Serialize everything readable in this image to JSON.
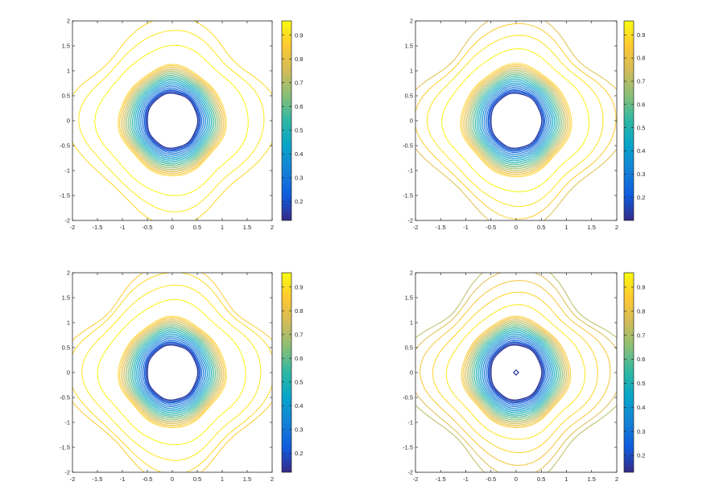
{
  "figure": {
    "background": "#ffffff",
    "axis_color": "#262626"
  },
  "colormap": {
    "name": "parula",
    "stops": [
      "#352a87",
      "#0f5cdd",
      "#1481d6",
      "#06a4ca",
      "#2eb7a4",
      "#87bf77",
      "#d1bb59",
      "#fec832",
      "#f9fb0e"
    ]
  },
  "chart_data": [
    {
      "type": "contour",
      "panel": "top-left",
      "title": "",
      "xlabel": "",
      "ylabel": "",
      "xlim": [
        -2,
        2
      ],
      "ylim": [
        -2,
        2
      ],
      "x_ticks": [
        "-2",
        "-1.5",
        "-1",
        "-0.5",
        "0",
        "0.5",
        "1",
        "1.5",
        "2"
      ],
      "y_ticks": [
        "-2",
        "-1.5",
        "-1",
        "-0.5",
        "0",
        "0.5",
        "1",
        "1.5",
        "2"
      ],
      "colorbar": {
        "range": [
          0.12,
          0.96
        ],
        "ticks": [
          "0.2",
          "0.3",
          "0.4",
          "0.5",
          "0.6",
          "0.7",
          "0.8",
          "0.9"
        ],
        "tick_values": [
          0.2,
          0.3,
          0.4,
          0.5,
          0.6,
          0.7,
          0.8,
          0.9
        ]
      },
      "central_well": {
        "value_min": 0.15,
        "value_max": 0.88,
        "level_count": 22,
        "outer_radius": 1.08,
        "inner_radius": 0.52
      },
      "outer_levels": [
        {
          "value": 0.95,
          "radius": 1.45
        },
        {
          "value": 0.92,
          "radius": 1.72
        },
        {
          "value": 0.89,
          "radius": 1.95
        }
      ],
      "grid": false,
      "box": true
    },
    {
      "type": "contour",
      "panel": "top-right",
      "title": "",
      "xlabel": "",
      "ylabel": "",
      "xlim": [
        -2,
        2
      ],
      "ylim": [
        -2,
        2
      ],
      "x_ticks": [
        "-2",
        "-1.5",
        "-1",
        "-0.5",
        "0",
        "0.5",
        "1",
        "1.5",
        "2"
      ],
      "y_ticks": [
        "-2",
        "-1.5",
        "-1",
        "-0.5",
        "0",
        "0.5",
        "1",
        "1.5",
        "2"
      ],
      "colorbar": {
        "range": [
          0.1,
          0.96
        ],
        "ticks": [
          "0.2",
          "0.3",
          "0.4",
          "0.5",
          "0.6",
          "0.7",
          "0.8",
          "0.9"
        ],
        "tick_values": [
          0.2,
          0.3,
          0.4,
          0.5,
          0.6,
          0.7,
          0.8,
          0.9
        ]
      },
      "central_well": {
        "value_min": 0.14,
        "value_max": 0.88,
        "level_count": 22,
        "outer_radius": 1.1,
        "inner_radius": 0.52
      },
      "outer_levels": [
        {
          "value": 0.95,
          "radius": 1.38
        },
        {
          "value": 0.91,
          "radius": 1.62
        },
        {
          "value": 0.86,
          "radius": 1.82
        },
        {
          "value": 0.78,
          "radius": 2.0
        }
      ],
      "grid": false,
      "box": true
    },
    {
      "type": "contour",
      "panel": "bottom-left",
      "title": "",
      "xlabel": "",
      "ylabel": "",
      "xlim": [
        -2,
        2
      ],
      "ylim": [
        -2,
        2
      ],
      "x_ticks": [
        "-2",
        "-1.5",
        "-1",
        "-0.5",
        "0",
        "0.5",
        "1",
        "1.5",
        "2"
      ],
      "y_ticks": [
        "-2",
        "-1.5",
        "-1",
        "-0.5",
        "0",
        "0.5",
        "1",
        "1.5",
        "2"
      ],
      "colorbar": {
        "range": [
          0.12,
          0.96
        ],
        "ticks": [
          "0.2",
          "0.3",
          "0.4",
          "0.5",
          "0.6",
          "0.7",
          "0.8",
          "0.9"
        ],
        "tick_values": [
          0.2,
          0.3,
          0.4,
          0.5,
          0.6,
          0.7,
          0.8,
          0.9
        ]
      },
      "central_well": {
        "value_min": 0.15,
        "value_max": 0.88,
        "level_count": 22,
        "outer_radius": 1.08,
        "inner_radius": 0.52
      },
      "outer_levels": [
        {
          "value": 0.95,
          "radius": 1.4
        },
        {
          "value": 0.92,
          "radius": 1.66
        },
        {
          "value": 0.89,
          "radius": 1.88
        },
        {
          "value": 0.86,
          "radius": 2.02
        }
      ],
      "grid": false,
      "box": true
    },
    {
      "type": "contour",
      "panel": "bottom-right",
      "title": "",
      "xlabel": "",
      "ylabel": "",
      "xlim": [
        -2,
        2
      ],
      "ylim": [
        -2,
        2
      ],
      "x_ticks": [
        "-2",
        "-1.5",
        "-1",
        "-0.5",
        "0",
        "0.5",
        "1",
        "1.5",
        "2"
      ],
      "y_ticks": [
        "-2",
        "-1.5",
        "-1",
        "-0.5",
        "0",
        "0.5",
        "1",
        "1.5",
        "2"
      ],
      "colorbar": {
        "range": [
          0.13,
          0.96
        ],
        "ticks": [
          "0.2",
          "0.3",
          "0.4",
          "0.5",
          "0.6",
          "0.7",
          "0.8",
          "0.9"
        ],
        "tick_values": [
          0.2,
          0.3,
          0.4,
          0.5,
          0.6,
          0.7,
          0.8,
          0.9
        ]
      },
      "central_well": {
        "value_min": 0.15,
        "value_max": 0.86,
        "level_count": 22,
        "outer_radius": 1.08,
        "inner_radius": 0.52
      },
      "outer_levels": [
        {
          "value": 0.92,
          "radius": 1.3
        },
        {
          "value": 0.88,
          "radius": 1.52
        },
        {
          "value": 0.84,
          "radius": 1.72
        },
        {
          "value": 0.78,
          "radius": 1.9
        },
        {
          "value": 0.72,
          "radius": 2.05
        }
      ],
      "center_marker": {
        "value": 0.15,
        "x": 0,
        "y": 0,
        "half_width": 0.05
      },
      "grid": false,
      "box": true
    }
  ]
}
